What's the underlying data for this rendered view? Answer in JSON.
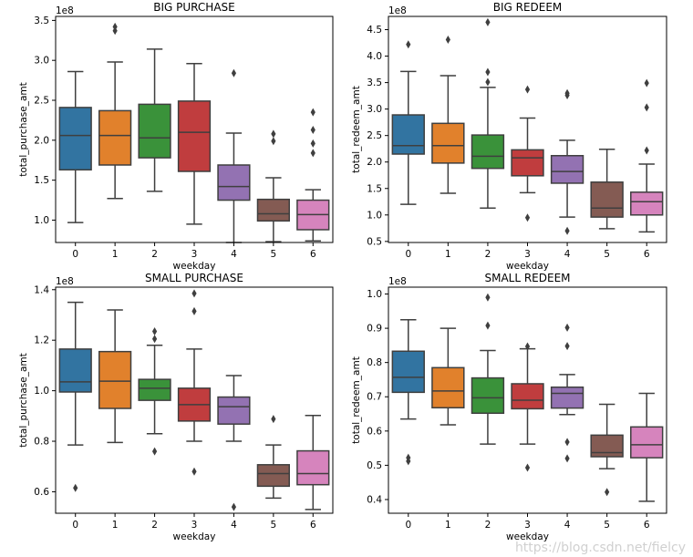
{
  "watermark": "https://blog.csdn.net/fielcy",
  "palette": [
    "#3274a1",
    "#e1812c",
    "#3a923a",
    "#c03d3e",
    "#9372b2",
    "#845b53",
    "#d684bd"
  ],
  "chart_data": [
    {
      "type": "box",
      "title": "BIG PURCHASE",
      "xlabel": "weekday",
      "ylabel": "total_purchase_amt",
      "exponent_label": "1e8",
      "categories": [
        "0",
        "1",
        "2",
        "3",
        "4",
        "5",
        "6"
      ],
      "ylim": [
        0.72,
        3.55
      ],
      "yticks": [
        1.0,
        1.5,
        2.0,
        2.5,
        3.0,
        3.5
      ],
      "ytick_labels": [
        "1.0",
        "1.5",
        "2.0",
        "2.5",
        "3.0",
        "3.5"
      ],
      "boxes": [
        {
          "category": "0",
          "whislo": 0.97,
          "q1": 1.63,
          "med": 2.06,
          "q3": 2.41,
          "whishi": 2.86,
          "fliers": []
        },
        {
          "category": "1",
          "whislo": 1.27,
          "q1": 1.69,
          "med": 2.06,
          "q3": 2.37,
          "whishi": 2.98,
          "fliers": [
            3.37,
            3.42
          ]
        },
        {
          "category": "2",
          "whislo": 1.36,
          "q1": 1.78,
          "med": 2.03,
          "q3": 2.45,
          "whishi": 3.14,
          "fliers": []
        },
        {
          "category": "3",
          "whislo": 0.95,
          "q1": 1.61,
          "med": 2.1,
          "q3": 2.49,
          "whishi": 2.96,
          "fliers": []
        },
        {
          "category": "4",
          "whislo": 0.72,
          "q1": 1.25,
          "med": 1.42,
          "q3": 1.69,
          "whishi": 2.09,
          "fliers": [
            2.84
          ]
        },
        {
          "category": "5",
          "whislo": 0.73,
          "q1": 0.99,
          "med": 1.08,
          "q3": 1.26,
          "whishi": 1.53,
          "fliers": [
            1.99,
            2.08
          ]
        },
        {
          "category": "6",
          "whislo": 0.74,
          "q1": 0.88,
          "med": 1.07,
          "q3": 1.25,
          "whishi": 1.38,
          "fliers": [
            1.84,
            1.96,
            2.13,
            2.35
          ]
        }
      ]
    },
    {
      "type": "box",
      "title": "BIG REDEEM",
      "xlabel": "weekday",
      "ylabel": "total_redeem_amt",
      "exponent_label": "1e8",
      "categories": [
        "0",
        "1",
        "2",
        "3",
        "4",
        "5",
        "6"
      ],
      "ylim": [
        0.48,
        4.75
      ],
      "yticks": [
        0.5,
        1.0,
        1.5,
        2.0,
        2.5,
        3.0,
        3.5,
        4.0,
        4.5
      ],
      "ytick_labels": [
        "0.5",
        "1.0",
        "1.5",
        "2.0",
        "2.5",
        "3.0",
        "3.5",
        "4.0",
        "4.5"
      ],
      "boxes": [
        {
          "category": "0",
          "whislo": 1.2,
          "q1": 2.15,
          "med": 2.31,
          "q3": 2.89,
          "whishi": 3.71,
          "fliers": [
            4.22
          ]
        },
        {
          "category": "1",
          "whislo": 1.41,
          "q1": 1.98,
          "med": 2.31,
          "q3": 2.73,
          "whishi": 3.63,
          "fliers": [
            4.31
          ]
        },
        {
          "category": "2",
          "whislo": 1.13,
          "q1": 1.88,
          "med": 2.11,
          "q3": 2.51,
          "whishi": 3.41,
          "fliers": [
            3.51,
            3.7,
            4.64
          ]
        },
        {
          "category": "3",
          "whislo": 1.42,
          "q1": 1.74,
          "med": 2.08,
          "q3": 2.23,
          "whishi": 2.83,
          "fliers": [
            0.95,
            3.37
          ]
        },
        {
          "category": "4",
          "whislo": 0.96,
          "q1": 1.6,
          "med": 1.82,
          "q3": 2.12,
          "whishi": 2.41,
          "fliers": [
            0.7,
            3.26,
            3.3
          ]
        },
        {
          "category": "5",
          "whislo": 0.74,
          "q1": 0.96,
          "med": 1.13,
          "q3": 1.62,
          "whishi": 2.24,
          "fliers": []
        },
        {
          "category": "6",
          "whislo": 0.68,
          "q1": 1.0,
          "med": 1.25,
          "q3": 1.43,
          "whishi": 1.96,
          "fliers": [
            2.22,
            3.03,
            3.49
          ]
        }
      ]
    },
    {
      "type": "box",
      "title": "SMALL PURCHASE",
      "xlabel": "weekday",
      "ylabel": "total_purchase_amt",
      "exponent_label": "1e8",
      "categories": [
        "0",
        "1",
        "2",
        "3",
        "4",
        "5",
        "6"
      ],
      "ylim": [
        0.515,
        1.41
      ],
      "yticks": [
        0.6,
        0.8,
        1.0,
        1.2,
        1.4
      ],
      "ytick_labels": [
        "0.6",
        "0.8",
        "1.0",
        "1.2",
        "1.4"
      ],
      "boxes": [
        {
          "category": "0",
          "whislo": 0.785,
          "q1": 0.995,
          "med": 1.035,
          "q3": 1.165,
          "whishi": 1.35,
          "fliers": [
            0.615
          ]
        },
        {
          "category": "1",
          "whislo": 0.795,
          "q1": 0.93,
          "med": 1.038,
          "q3": 1.155,
          "whishi": 1.32,
          "fliers": []
        },
        {
          "category": "2",
          "whislo": 0.83,
          "q1": 0.962,
          "med": 1.01,
          "q3": 1.045,
          "whishi": 1.18,
          "fliers": [
            0.76,
            1.205,
            1.235
          ]
        },
        {
          "category": "3",
          "whislo": 0.8,
          "q1": 0.88,
          "med": 0.945,
          "q3": 1.01,
          "whishi": 1.165,
          "fliers": [
            0.68,
            1.315,
            1.385
          ]
        },
        {
          "category": "4",
          "whislo": 0.8,
          "q1": 0.868,
          "med": 0.937,
          "q3": 0.975,
          "whishi": 1.06,
          "fliers": [
            0.54
          ]
        },
        {
          "category": "5",
          "whislo": 0.575,
          "q1": 0.622,
          "med": 0.672,
          "q3": 0.707,
          "whishi": 0.785,
          "fliers": [
            0.888
          ]
        },
        {
          "category": "6",
          "whislo": 0.53,
          "q1": 0.628,
          "med": 0.672,
          "q3": 0.762,
          "whishi": 0.902,
          "fliers": []
        }
      ]
    },
    {
      "type": "box",
      "title": "SMALL REDEEM",
      "xlabel": "weekday",
      "ylabel": "total_redeem_amt",
      "exponent_label": "1e8",
      "categories": [
        "0",
        "1",
        "2",
        "3",
        "4",
        "5",
        "6"
      ],
      "ylim": [
        0.36,
        1.02
      ],
      "yticks": [
        0.4,
        0.5,
        0.6,
        0.7,
        0.8,
        0.9,
        1.0
      ],
      "ytick_labels": [
        "0.4",
        "0.5",
        "0.6",
        "0.7",
        "0.8",
        "0.9",
        "1.0"
      ],
      "boxes": [
        {
          "category": "0",
          "whislo": 0.635,
          "q1": 0.713,
          "med": 0.757,
          "q3": 0.833,
          "whishi": 0.925,
          "fliers": [
            0.512,
            0.522
          ]
        },
        {
          "category": "1",
          "whislo": 0.618,
          "q1": 0.668,
          "med": 0.717,
          "q3": 0.785,
          "whishi": 0.9,
          "fliers": []
        },
        {
          "category": "2",
          "whislo": 0.562,
          "q1": 0.652,
          "med": 0.697,
          "q3": 0.755,
          "whishi": 0.835,
          "fliers": [
            0.908,
            0.99
          ]
        },
        {
          "category": "3",
          "whislo": 0.562,
          "q1": 0.665,
          "med": 0.69,
          "q3": 0.738,
          "whishi": 0.84,
          "fliers": [
            0.493,
            0.847
          ]
        },
        {
          "category": "4",
          "whislo": 0.648,
          "q1": 0.667,
          "med": 0.71,
          "q3": 0.728,
          "whishi": 0.765,
          "fliers": [
            0.52,
            0.568,
            0.848,
            0.902
          ]
        },
        {
          "category": "5",
          "whislo": 0.49,
          "q1": 0.525,
          "med": 0.537,
          "q3": 0.588,
          "whishi": 0.678,
          "fliers": [
            0.422
          ]
        },
        {
          "category": "6",
          "whislo": 0.395,
          "q1": 0.522,
          "med": 0.56,
          "q3": 0.612,
          "whishi": 0.71,
          "fliers": []
        }
      ]
    }
  ]
}
